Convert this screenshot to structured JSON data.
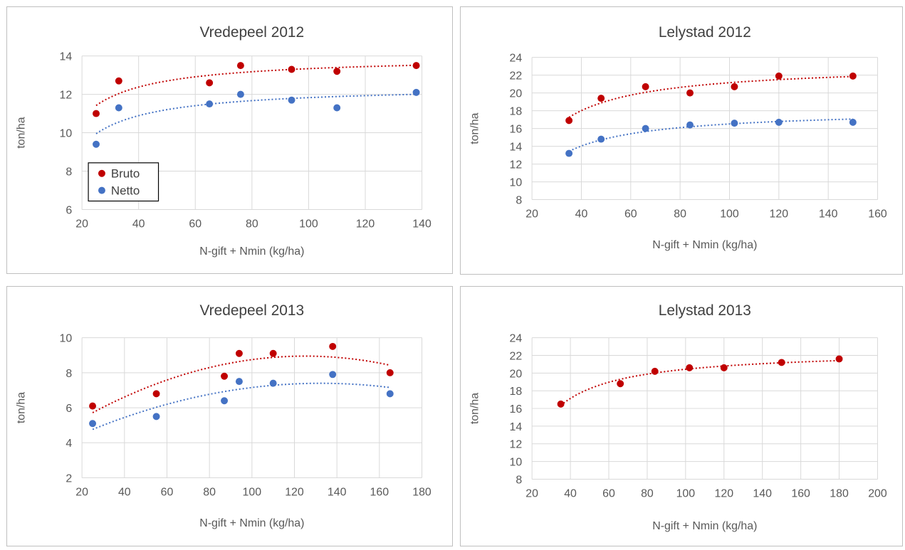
{
  "chart_data": [
    {
      "type": "scatter",
      "title": "Vredepeel 2012",
      "xlabel": "N-gift + Nmin (kg/ha)",
      "ylabel": "ton/ha",
      "xlim": [
        20,
        140
      ],
      "xticks": [
        20,
        40,
        60,
        80,
        100,
        120,
        140
      ],
      "ylim": [
        6,
        14
      ],
      "yticks": [
        6,
        8,
        10,
        12,
        14
      ],
      "grid": true,
      "legend_placement": "bottom-left",
      "series": [
        {
          "name": "Bruto",
          "color": "#C00000",
          "trend": "dotted",
          "x": [
            25,
            33,
            65,
            76,
            94,
            110,
            138
          ],
          "y": [
            11.0,
            12.7,
            12.6,
            13.5,
            13.3,
            13.2,
            13.5
          ]
        },
        {
          "name": "Netto",
          "color": "#4472C4",
          "trend": "dotted",
          "x": [
            25,
            33,
            65,
            76,
            94,
            110,
            138
          ],
          "y": [
            9.4,
            11.3,
            11.5,
            12.0,
            11.7,
            11.3,
            12.1
          ]
        }
      ]
    },
    {
      "type": "scatter",
      "title": "Lelystad 2012",
      "xlabel": "N-gift + Nmin (kg/ha)",
      "ylabel": "ton/ha",
      "xlim": [
        20,
        160
      ],
      "xticks": [
        20,
        40,
        60,
        80,
        100,
        120,
        140,
        160
      ],
      "ylim": [
        8,
        24
      ],
      "yticks": [
        8,
        10,
        12,
        14,
        16,
        18,
        20,
        22,
        24
      ],
      "grid": true,
      "series": [
        {
          "color": "#C00000",
          "trend": "dotted",
          "x": [
            35,
            48,
            66,
            84,
            102,
            120,
            150
          ],
          "y": [
            16.9,
            19.4,
            20.7,
            20.0,
            20.7,
            21.9,
            21.9
          ]
        },
        {
          "color": "#4472C4",
          "trend": "dotted",
          "x": [
            35,
            48,
            66,
            84,
            102,
            120,
            150
          ],
          "y": [
            13.2,
            14.8,
            16.0,
            16.4,
            16.6,
            16.7,
            16.7
          ]
        }
      ]
    },
    {
      "type": "scatter",
      "title": "Vredepeel 2013",
      "xlabel": "N-gift + Nmin (kg/ha)",
      "ylabel": "ton/ha",
      "xlim": [
        20,
        180
      ],
      "xticks": [
        20,
        40,
        60,
        80,
        100,
        120,
        140,
        160,
        180
      ],
      "ylim": [
        2,
        10
      ],
      "yticks": [
        2,
        4,
        6,
        8,
        10
      ],
      "grid": true,
      "series": [
        {
          "color": "#C00000",
          "trend": "dotted",
          "x": [
            25,
            55,
            87,
            94,
            110,
            138,
            165
          ],
          "y": [
            6.1,
            6.8,
            7.8,
            9.1,
            9.1,
            9.5,
            8.0
          ]
        },
        {
          "color": "#4472C4",
          "trend": "dotted",
          "x": [
            25,
            55,
            87,
            94,
            110,
            138,
            165
          ],
          "y": [
            5.1,
            5.5,
            6.4,
            7.5,
            7.4,
            7.9,
            6.8
          ]
        }
      ]
    },
    {
      "type": "scatter",
      "title": "Lelystad 2013",
      "xlabel": "N-gift + Nmin (kg/ha)",
      "ylabel": "ton/ha",
      "xlim": [
        20,
        200
      ],
      "xticks": [
        20,
        40,
        60,
        80,
        100,
        120,
        140,
        160,
        180,
        200
      ],
      "ylim": [
        8,
        24
      ],
      "yticks": [
        8,
        10,
        12,
        14,
        16,
        18,
        20,
        22,
        24
      ],
      "grid": true,
      "series": [
        {
          "color": "#C00000",
          "trend": "dotted",
          "x": [
            35,
            66,
            84,
            102,
            120,
            150,
            180
          ],
          "y": [
            16.5,
            18.8,
            20.2,
            20.6,
            20.6,
            21.2,
            21.6
          ]
        }
      ]
    }
  ]
}
